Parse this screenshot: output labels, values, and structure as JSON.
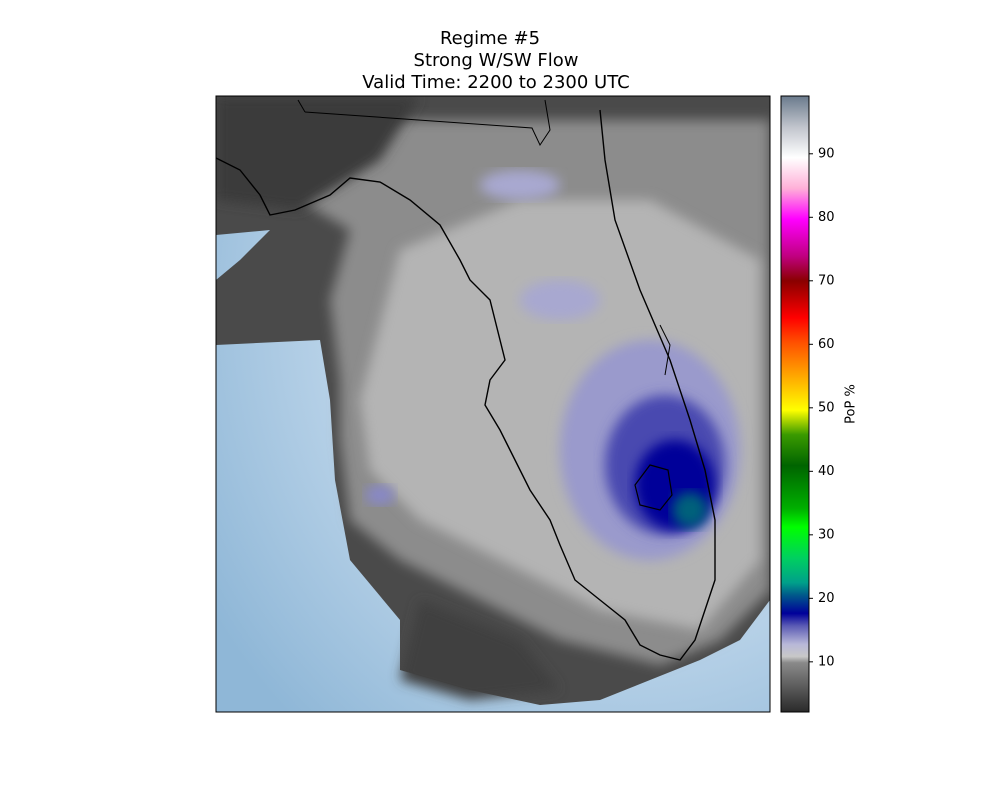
{
  "title": [
    "Regime #5",
    "Strong W/SW Flow",
    "Valid Time: 2200 to 2300 UTC"
  ],
  "colorbar": {
    "label": "PoP %",
    "clim": [
      2.1,
      99.1
    ],
    "ticks": [
      10,
      20,
      30,
      40,
      50,
      60,
      70,
      80,
      90
    ]
  }
}
